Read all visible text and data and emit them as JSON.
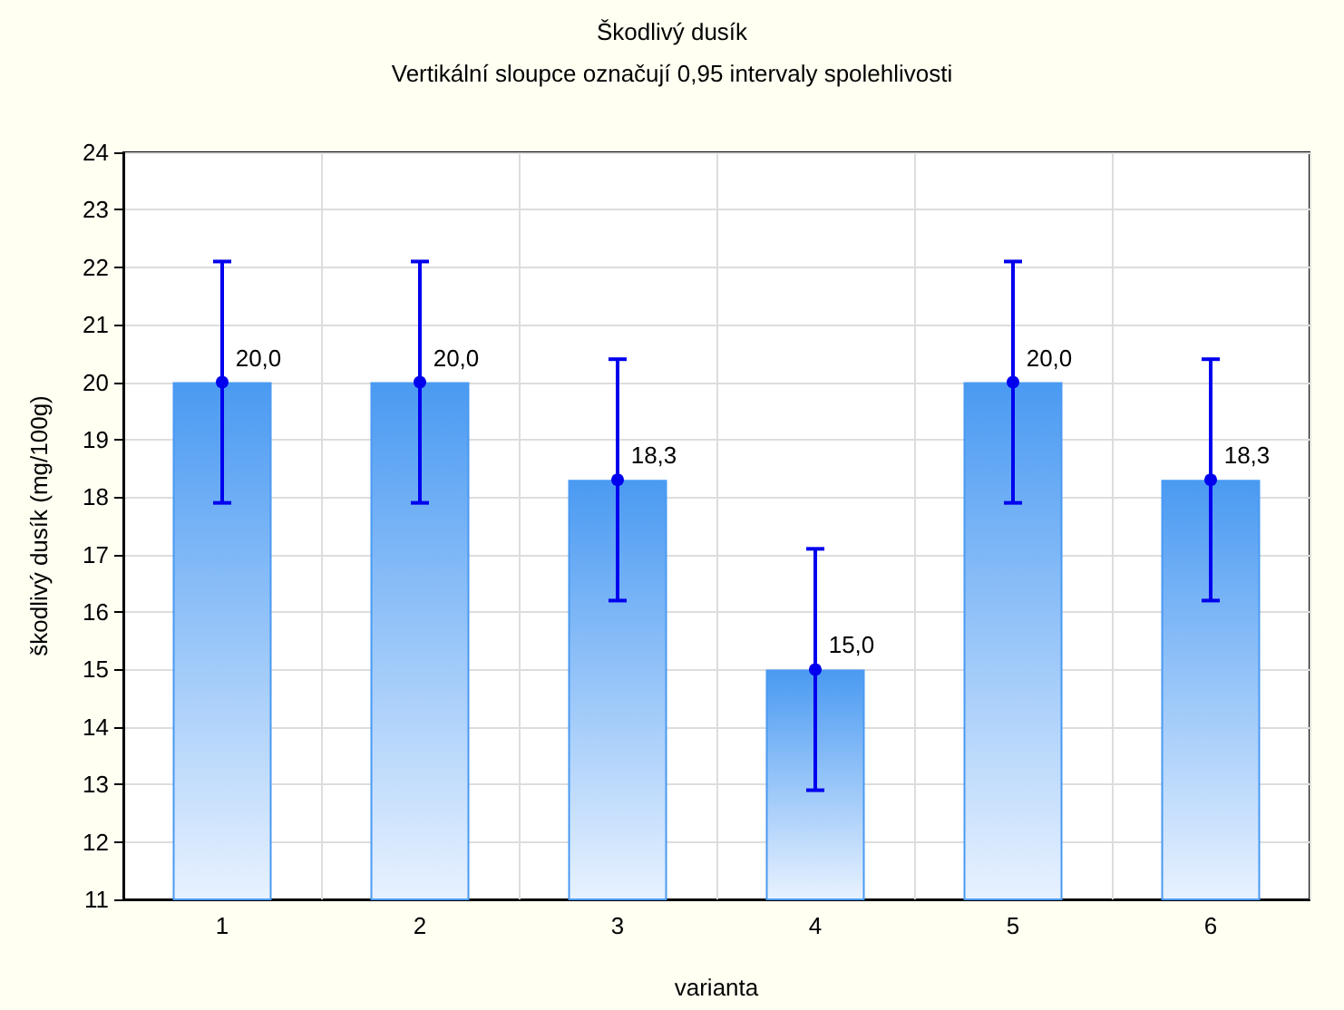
{
  "chart_data": {
    "type": "bar",
    "title": "Škodlivý dusík",
    "subtitle": "Vertikální sloupce označují 0,95 intervaly spolehlivosti",
    "xlabel": "varianta",
    "ylabel": "škodlivý dusík (mg/100g)",
    "categories": [
      "1",
      "2",
      "3",
      "4",
      "5",
      "6"
    ],
    "series": [
      {
        "color": "#4a9af2",
        "values": [
          20.0,
          20.0,
          18.3,
          15.0,
          20.0,
          18.3
        ],
        "errors": [
          2.1,
          2.1,
          2.1,
          2.1,
          2.1,
          2.1
        ],
        "value_labels": [
          "20,0",
          "20,0",
          "18,3",
          "15,0",
          "20,0",
          "18,3"
        ]
      },
      {
        "type": "scatter",
        "color": "#0000ee",
        "x": [
          "1",
          "2",
          "3",
          "4",
          "5",
          "6"
        ],
        "values": [
          20.0,
          20.0,
          18.3,
          15.0,
          20.0,
          18.3
        ]
      }
    ],
    "marker": "circle",
    "grid": true,
    "ylim": [
      11,
      24
    ],
    "yticks": [
      11,
      12,
      13,
      14,
      15,
      16,
      17,
      18,
      19,
      20,
      21,
      22,
      23,
      24
    ]
  }
}
